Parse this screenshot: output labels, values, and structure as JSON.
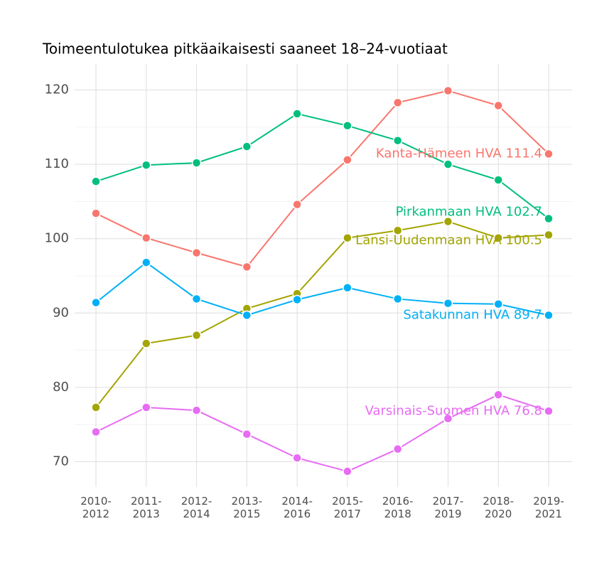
{
  "chart_data": {
    "type": "line",
    "title": "Toimeentulotukea pitkäaikaisesti saaneet 18–24-vuotiaat",
    "categories": [
      "2010-2012",
      "2011-2013",
      "2012-2014",
      "2013-2015",
      "2014-2016",
      "2015-2017",
      "2016-2018",
      "2017-2019",
      "2018-2020",
      "2019-2021"
    ],
    "series": [
      {
        "name": "Kanta-Hämeen HVA",
        "label": "Kanta-Hämeen HVA 111.4",
        "color": "#f8766d",
        "values": [
          103.4,
          100.1,
          98.1,
          96.2,
          104.6,
          110.6,
          118.3,
          119.9,
          117.9,
          111.4
        ]
      },
      {
        "name": "Pirkanmaan HVA",
        "label": "Pirkanmaan HVA 102.7",
        "color": "#00bf7d",
        "values": [
          107.7,
          109.9,
          110.2,
          112.4,
          116.8,
          115.2,
          113.2,
          110.0,
          107.9,
          102.7
        ]
      },
      {
        "name": "Länsi-Uudenmaan HVA",
        "label": "Länsi-Uudenmaan HVA 100.5",
        "color": "#a3a500",
        "values": [
          77.3,
          85.9,
          87.0,
          90.6,
          92.6,
          100.1,
          101.1,
          102.3,
          100.1,
          100.5
        ]
      },
      {
        "name": "Satakunnan HVA",
        "label": "Satakunnan HVA 89.7",
        "color": "#00b0f6",
        "values": [
          91.4,
          96.8,
          91.9,
          89.7,
          91.8,
          93.4,
          91.9,
          91.3,
          91.2,
          89.7
        ]
      },
      {
        "name": "Varsinais-Suomen HVA",
        "label": "Varsinais-Suomen HVA 76.8",
        "color": "#e76bf3",
        "values": [
          74.0,
          77.3,
          76.9,
          73.7,
          70.5,
          68.7,
          71.7,
          75.8,
          79.0,
          76.8
        ]
      }
    ],
    "ylim": [
      66.6,
      123.5
    ],
    "yticks": [
      70,
      80,
      90,
      100,
      110,
      120
    ],
    "minor_yticks": [
      75,
      85,
      95,
      105,
      115
    ],
    "grid": true
  }
}
